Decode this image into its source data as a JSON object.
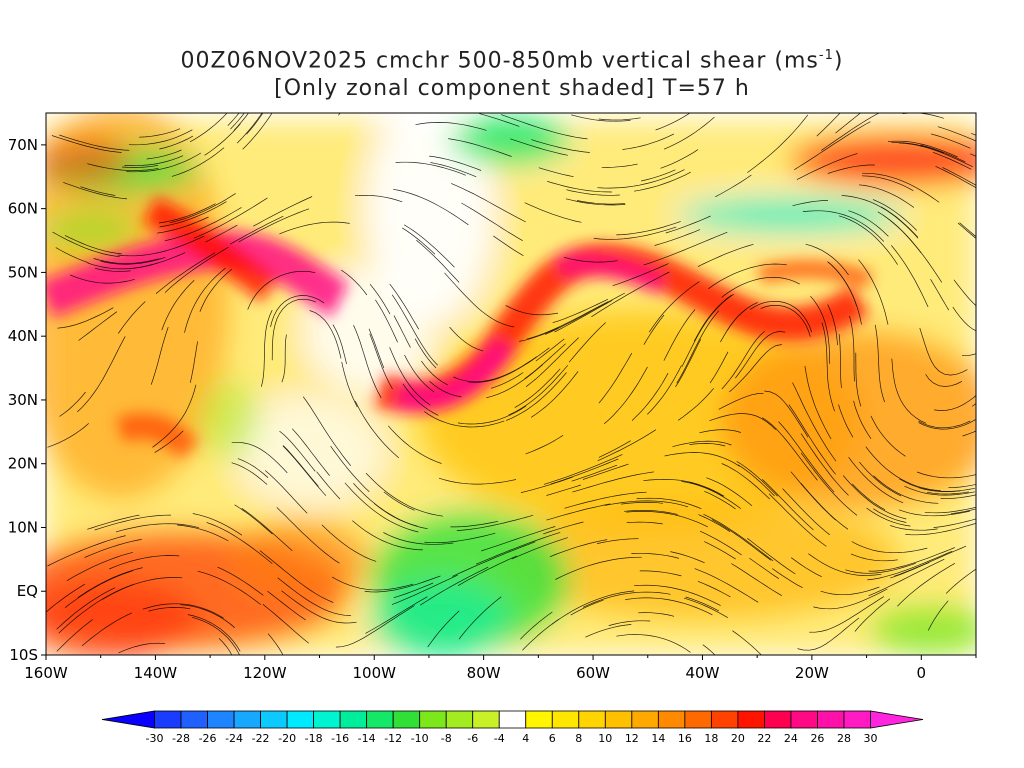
{
  "title_line1": "00Z06NOV2025 cmchr 500-850mb vertical shear (ms",
  "title_unit_sup": "-1",
  "title_line1_end": ")",
  "title_line2": "[Only zonal component shaded] T=57 h",
  "map": {
    "lon_range": [
      -160,
      10
    ],
    "lat_range": [
      -10,
      75
    ],
    "lon_ticks": [
      "160W",
      "140W",
      "120W",
      "100W",
      "80W",
      "60W",
      "40W",
      "20W",
      "0"
    ],
    "lat_ticks": [
      "10S",
      "EQ",
      "10N",
      "20N",
      "30N",
      "40N",
      "50N",
      "60N",
      "70N"
    ]
  },
  "colorbar": {
    "labels": [
      "-30",
      "-28",
      "-26",
      "-24",
      "-22",
      "-20",
      "-18",
      "-16",
      "-14",
      "-12",
      "-10",
      "-8",
      "-6",
      "-4",
      "4",
      "6",
      "8",
      "10",
      "12",
      "14",
      "16",
      "18",
      "20",
      "22",
      "24",
      "26",
      "28",
      "30"
    ],
    "colors": [
      "#0a00ff",
      "#1a3cff",
      "#1f60ff",
      "#1e84ff",
      "#19a8ff",
      "#0ccaff",
      "#00eaff",
      "#00f4d0",
      "#00ee9c",
      "#14e866",
      "#30e036",
      "#7ce71a",
      "#a4ec22",
      "#c8f227",
      "#ffffff",
      "#fff600",
      "#ffe600",
      "#ffd400",
      "#ffc000",
      "#ffa800",
      "#ff8a00",
      "#ff6a00",
      "#ff4200",
      "#ff1400",
      "#ff0050",
      "#ff0a84",
      "#ff10a8",
      "#ff1ac4",
      "#ff24de"
    ]
  }
}
